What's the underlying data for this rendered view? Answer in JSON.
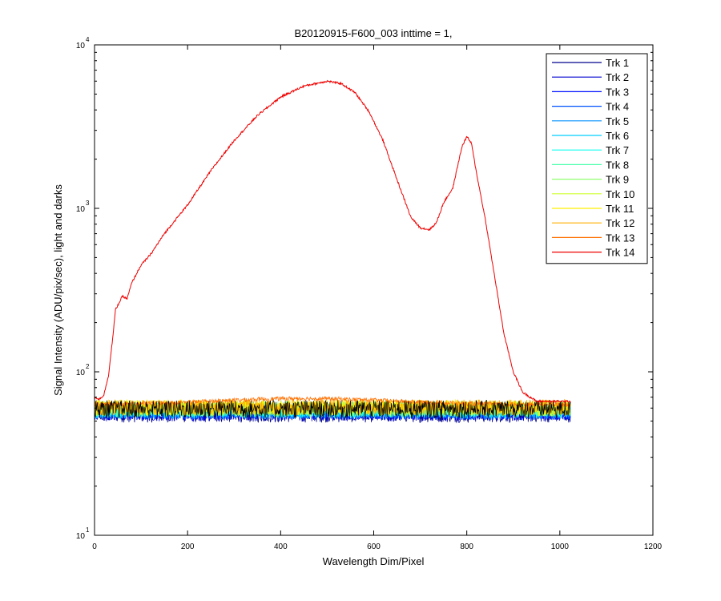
{
  "chart_data": {
    "type": "line",
    "title": "B20120915-F600_003 inttime = 1,",
    "xlabel": "Wavelength Dim/Pixel",
    "ylabel": "Signal Intensity (ADU/pix/sec), light and darks",
    "xlim": [
      0,
      1200
    ],
    "ylim": [
      10,
      10000
    ],
    "yscale": "log",
    "x_ticks": [
      "0",
      "200",
      "400",
      "600",
      "800",
      "1000",
      "1200"
    ],
    "y_tick_bases": [
      "10",
      "10",
      "10",
      "10"
    ],
    "y_tick_exponents": [
      "1",
      "2",
      "3",
      "4"
    ],
    "legend_position": "top-right",
    "grid": false,
    "series": [
      {
        "name": "Trk 1",
        "color": "#00008F",
        "base": 55
      },
      {
        "name": "Trk 2",
        "color": "#0000CF",
        "base": 56
      },
      {
        "name": "Trk 3",
        "color": "#0010FF",
        "base": 57
      },
      {
        "name": "Trk 4",
        "color": "#0050FF",
        "base": 57
      },
      {
        "name": "Trk 5",
        "color": "#0090FF",
        "base": 58
      },
      {
        "name": "Trk 6",
        "color": "#00D0FF",
        "base": 58
      },
      {
        "name": "Trk 7",
        "color": "#10FFEF",
        "base": 59
      },
      {
        "name": "Trk 8",
        "color": "#50FFAF",
        "base": 59
      },
      {
        "name": "Trk 9",
        "color": "#90FF6F",
        "base": 60
      },
      {
        "name": "Trk 10",
        "color": "#CFFF30",
        "base": 60
      },
      {
        "name": "Trk 11",
        "color": "#FFEF00",
        "base": 61
      },
      {
        "name": "Trk 12",
        "color": "#FFAF00",
        "base": 61
      },
      {
        "name": "Trk 13",
        "color": "#FF7000",
        "base": 63
      },
      {
        "name": "Trk 14",
        "color": "#EE0000",
        "x": [
          0,
          10,
          20,
          30,
          40,
          45,
          50,
          60,
          70,
          80,
          100,
          120,
          150,
          200,
          250,
          300,
          350,
          400,
          450,
          500,
          530,
          560,
          590,
          620,
          650,
          680,
          700,
          720,
          735,
          750,
          760,
          770,
          780,
          790,
          800,
          810,
          820,
          840,
          860,
          880,
          900,
          920,
          950,
          1000,
          1020
        ],
        "y": [
          70,
          68,
          72,
          95,
          170,
          240,
          255,
          290,
          280,
          350,
          450,
          520,
          700,
          1050,
          1700,
          2600,
          3700,
          4800,
          5600,
          6000,
          5800,
          5100,
          3900,
          2600,
          1500,
          880,
          760,
          740,
          820,
          1080,
          1200,
          1330,
          1800,
          2400,
          2750,
          2500,
          1700,
          850,
          380,
          170,
          100,
          75,
          66,
          66,
          66
        ]
      }
    ]
  }
}
